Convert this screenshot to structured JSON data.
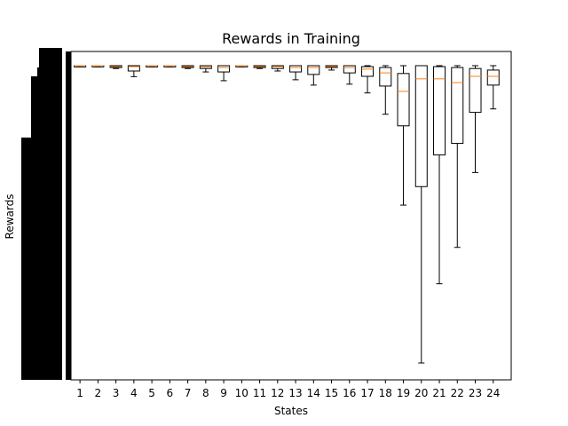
{
  "chart_data": {
    "type": "box",
    "title": "Rewards in Training",
    "xlabel": "States",
    "ylabel": "Rewards",
    "categories": [
      "1",
      "2",
      "3",
      "4",
      "5",
      "6",
      "7",
      "8",
      "9",
      "10",
      "11",
      "12",
      "13",
      "14",
      "15",
      "16",
      "17",
      "18",
      "19",
      "20",
      "21",
      "22",
      "23",
      "24"
    ],
    "ylim": [
      0,
      100
    ],
    "grid": false,
    "legend": "none",
    "colors": {
      "box": "#000000",
      "median": "#ff7f0e",
      "ytick_block": "#000000"
    },
    "boxes": [
      {
        "label": "1",
        "whislo": 99.6,
        "q1": 99.6,
        "med": 100,
        "q3": 100,
        "whishi": 100
      },
      {
        "label": "2",
        "whislo": 99.6,
        "q1": 99.6,
        "med": 100,
        "q3": 100,
        "whishi": 100
      },
      {
        "label": "3",
        "whislo": 99.1,
        "q1": 99.4,
        "med": 99.7,
        "q3": 100,
        "whishi": 100
      },
      {
        "label": "4",
        "whislo": 96.5,
        "q1": 98.3,
        "med": 99.7,
        "q3": 100,
        "whishi": 100
      },
      {
        "label": "5",
        "whislo": 99.6,
        "q1": 99.6,
        "med": 100,
        "q3": 100,
        "whishi": 100
      },
      {
        "label": "6",
        "whislo": 99.6,
        "q1": 99.6,
        "med": 100,
        "q3": 100,
        "whishi": 100
      },
      {
        "label": "7",
        "whislo": 99.1,
        "q1": 99.4,
        "med": 99.7,
        "q3": 100,
        "whishi": 100
      },
      {
        "label": "8",
        "whislo": 98.0,
        "q1": 99.1,
        "med": 99.6,
        "q3": 100,
        "whishi": 100
      },
      {
        "label": "9",
        "whislo": 95.2,
        "q1": 98.0,
        "med": 99.4,
        "q3": 100,
        "whishi": 100
      },
      {
        "label": "10",
        "whislo": 99.6,
        "q1": 99.6,
        "med": 100,
        "q3": 100,
        "whishi": 100
      },
      {
        "label": "11",
        "whislo": 99.1,
        "q1": 99.4,
        "med": 99.7,
        "q3": 100,
        "whishi": 100
      },
      {
        "label": "12",
        "whislo": 98.3,
        "q1": 99.1,
        "med": 99.7,
        "q3": 100,
        "whishi": 100
      },
      {
        "label": "13",
        "whislo": 95.5,
        "q1": 98.0,
        "med": 99.4,
        "q3": 100,
        "whishi": 100
      },
      {
        "label": "14",
        "whislo": 93.8,
        "q1": 97.2,
        "med": 99.4,
        "q3": 100,
        "whishi": 100
      },
      {
        "label": "15",
        "whislo": 98.6,
        "q1": 99.4,
        "med": 99.7,
        "q3": 100,
        "whishi": 100
      },
      {
        "label": "16",
        "whislo": 94.1,
        "q1": 97.7,
        "med": 99.4,
        "q3": 100,
        "whishi": 100
      },
      {
        "label": "17",
        "whislo": 91.3,
        "q1": 96.6,
        "med": 98.9,
        "q3": 99.7,
        "whishi": 100
      },
      {
        "label": "18",
        "whislo": 84.5,
        "q1": 93.5,
        "med": 97.7,
        "q3": 99.4,
        "whishi": 100
      },
      {
        "label": "19",
        "whislo": 55.5,
        "q1": 80.8,
        "med": 91.8,
        "q3": 97.5,
        "whishi": 100
      },
      {
        "label": "20",
        "whislo": 5.1,
        "q1": 61.4,
        "med": 95.8,
        "q3": 100,
        "whishi": 100
      },
      {
        "label": "21",
        "whislo": 30.4,
        "q1": 71.5,
        "med": 95.8,
        "q3": 99.7,
        "whishi": 100
      },
      {
        "label": "22",
        "whislo": 42.0,
        "q1": 75.2,
        "med": 94.6,
        "q3": 99.4,
        "whishi": 100
      },
      {
        "label": "23",
        "whislo": 65.9,
        "q1": 85.1,
        "med": 96.6,
        "q3": 99.1,
        "whishi": 100
      },
      {
        "label": "24",
        "whislo": 86.2,
        "q1": 93.8,
        "med": 96.6,
        "q3": 98.6,
        "whishi": 100
      }
    ]
  }
}
